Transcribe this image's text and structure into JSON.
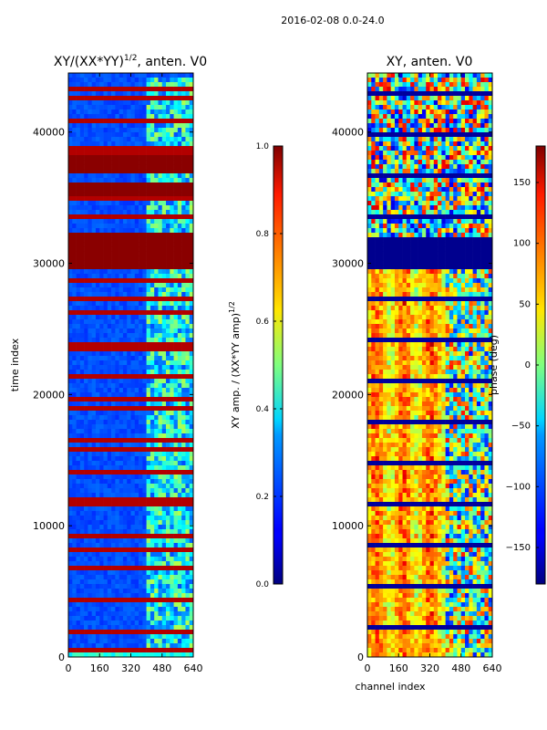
{
  "figure_title": "2016-02-08 0.0-24.0",
  "chart_data": [
    {
      "type": "heatmap",
      "title_main": "XY/(XX*YY)",
      "title_sup": "1/2",
      "title_rest": ", anten. V0",
      "xlabel": "",
      "ylabel": "time index",
      "x_ticks": [
        0,
        160,
        320,
        480,
        640
      ],
      "y_ticks": [
        0,
        10000,
        20000,
        30000,
        40000
      ],
      "xlim": [
        0,
        640
      ],
      "ylim": [
        0,
        44500
      ],
      "colorbar": {
        "label_main": "XY amp. / (XX*YY amp)",
        "label_sup": "1/2",
        "ticks": [
          "0.0",
          "0.2",
          "0.4",
          "0.6",
          "0.8",
          "1.0"
        ],
        "vmin": 0.0,
        "vmax": 1.0,
        "colormap": "jet"
      },
      "features": {
        "background_value": 0.2,
        "saturated_blocks": [
          [
            29500,
            32200
          ],
          [
            35200,
            36000
          ],
          [
            36800,
            38200
          ]
        ],
        "active_channel_range": [
          400,
          640
        ],
        "bright_row_band": [
          0,
          600
        ]
      }
    },
    {
      "type": "heatmap",
      "title": "XY, anten. V0",
      "xlabel": "channel index",
      "ylabel": "",
      "x_ticks": [
        0,
        160,
        320,
        480,
        640
      ],
      "y_ticks": [
        0,
        10000,
        20000,
        30000,
        40000
      ],
      "xlim": [
        0,
        640
      ],
      "ylim": [
        0,
        44500
      ],
      "colorbar": {
        "label": "phase (deg)",
        "ticks": [
          "150",
          "100",
          "50",
          "0",
          "−50",
          "−100",
          "−150"
        ],
        "tick_values": [
          150,
          100,
          50,
          0,
          -50,
          -100,
          -150
        ],
        "vmin": -180,
        "vmax": 180,
        "colormap": "jet"
      },
      "features": {
        "dark_block": [
          29500,
          32000
        ],
        "band_phase_deg": 55,
        "phase_break_channel": 400
      }
    }
  ]
}
